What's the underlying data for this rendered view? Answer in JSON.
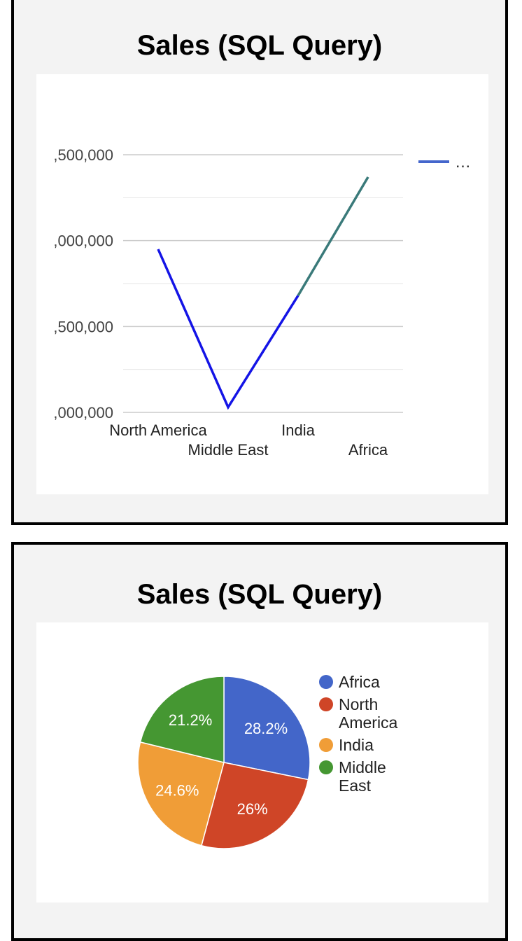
{
  "chart_data": [
    {
      "type": "line",
      "title": "Sales (SQL Query)",
      "categories": [
        "North America",
        "Middle East",
        "India",
        "Africa"
      ],
      "series": [
        {
          "values": [
            4950000,
            4030000,
            4680000,
            5370000
          ]
        }
      ],
      "y_tick_labels": [
        ",500,000",
        ",000,000",
        ",500,000",
        ",000,000"
      ],
      "legend_label": "…",
      "ylim": [
        4000000,
        5500000
      ],
      "grid": true,
      "legend_position": "right",
      "colors": {
        "line": "#1414e6",
        "line_tail": "#3a7a7a",
        "legend_swatch": "#4466cc"
      }
    },
    {
      "type": "pie",
      "title": "Sales (SQL Query)",
      "slices": [
        {
          "label": [
            "Africa"
          ],
          "percent_label": "28.2%",
          "value": 28.2,
          "color": "#4366c9"
        },
        {
          "label": [
            "North",
            "America"
          ],
          "percent_label": "26%",
          "value": 26.0,
          "color": "#cf4527"
        },
        {
          "label": [
            "India"
          ],
          "percent_label": "24.6%",
          "value": 24.6,
          "color": "#f09d37"
        },
        {
          "label": [
            "Middle",
            "East"
          ],
          "percent_label": "21.2%",
          "value": 21.2,
          "color": "#459732"
        }
      ],
      "legend_position": "right"
    }
  ]
}
